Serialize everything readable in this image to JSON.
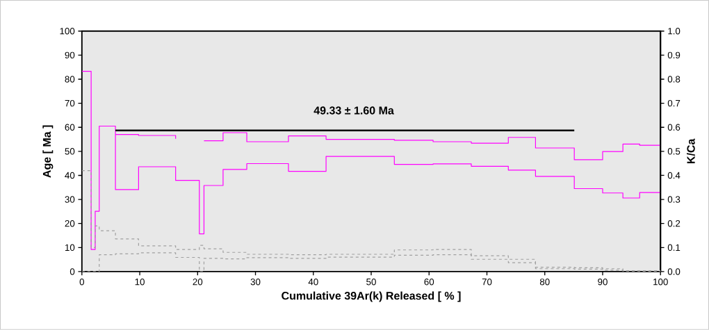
{
  "chart_data": {
    "type": "step",
    "xlabel": "Cumulative 39Ar(k) Released [ % ]",
    "ylabel": "Age [ Ma ]",
    "y2label": "K/Ca",
    "x": [
      0,
      1.6,
      2.3,
      3.0,
      5.8,
      9.8,
      16.2,
      20.3,
      21.1,
      24.4,
      28.5,
      35.7,
      42.2,
      54.0,
      60.7,
      67.3,
      73.7,
      78.4,
      85.1,
      90.0,
      93.5,
      96.4,
      100
    ],
    "series": [
      {
        "color": "#ff00ff",
        "line_style": "solid",
        "values": [
          null,
          null,
          null,
          null,
          57.0,
          56.6,
          55.2,
          null,
          54.4,
          57.8,
          54.0,
          56.4,
          55.0,
          54.6,
          54.0,
          53.4,
          55.8,
          51.4,
          46.5,
          49.9,
          53.0,
          52.5,
          52.5
        ]
      },
      {
        "color": "#ff00ff",
        "line_style": "solid",
        "values": [
          83.3,
          9.2,
          25.1,
          60.5,
          34.1,
          43.6,
          37.9,
          15.7,
          35.8,
          42.5,
          44.9,
          41.7,
          47.9,
          44.6,
          44.8,
          43.8,
          42.2,
          39.6,
          34.5,
          32.7,
          30.6,
          32.9,
          32.9
        ]
      },
      {
        "color": "#a0a0a0",
        "line_style": "dashed",
        "axis": "y2",
        "values": [
          0.42,
          0.1,
          0.19,
          0.17,
          0.136,
          0.107,
          0.092,
          0.109,
          0.095,
          0.08,
          0.072,
          0.07,
          0.072,
          0.09,
          0.092,
          0.066,
          0.051,
          0.018,
          0.016,
          0.012,
          0.004,
          0.004,
          0.004
        ]
      },
      {
        "color": "#a0a0a0",
        "line_style": "dashed",
        "axis": "y2",
        "values": [
          0,
          0,
          0,
          0.07,
          0.074,
          0.078,
          0.059,
          0,
          0.055,
          0.053,
          0.058,
          0.055,
          0.06,
          0.068,
          0.07,
          0.051,
          0.037,
          0.012,
          0.01,
          0.006,
          0.002,
          0.001,
          0.001
        ]
      },
      {
        "type": "line",
        "color": "#000000",
        "line_style": "solid",
        "x": [
          5.8,
          85.1
        ],
        "values": [
          58.7,
          58.7
        ]
      }
    ],
    "annotations": [
      "49.33 ± 1.60 Ma"
    ],
    "marker": "none",
    "grid": false,
    "xlim": [
      0,
      100
    ],
    "xticks": [
      0,
      10,
      20,
      30,
      40,
      50,
      60,
      70,
      80,
      90,
      100
    ],
    "ylim": [
      0,
      100
    ],
    "yticks": [
      0,
      10,
      20,
      30,
      40,
      50,
      60,
      70,
      80,
      90,
      100
    ],
    "y2lim": [
      0,
      1
    ],
    "y2ticks": [
      {
        "value": 0,
        "label": "0.0"
      },
      {
        "value": 0.1,
        "label": "0.1"
      },
      {
        "value": 0.2,
        "label": "0.2"
      },
      {
        "value": 0.3,
        "label": "0.3"
      },
      {
        "value": 0.4,
        "label": "0.4"
      },
      {
        "value": 0.5,
        "label": "0.5"
      },
      {
        "value": 0.6,
        "label": "0.6"
      },
      {
        "value": 0.7,
        "label": "0.7"
      },
      {
        "value": 0.8,
        "label": "0.8"
      },
      {
        "value": 0.9,
        "label": "0.9"
      },
      {
        "value": 1,
        "label": "1.0"
      }
    ]
  }
}
